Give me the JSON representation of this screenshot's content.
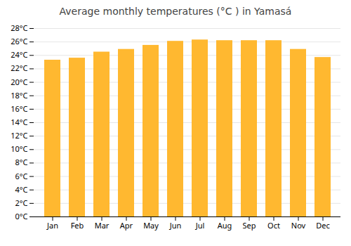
{
  "chart_data": {
    "type": "bar",
    "title": "Average monthly temperatures (°C ) in Yamasá",
    "categories": [
      "Jan",
      "Feb",
      "Mar",
      "Apr",
      "May",
      "Jun",
      "Jul",
      "Aug",
      "Sep",
      "Oct",
      "Nov",
      "Dec"
    ],
    "values": [
      23.3,
      23.6,
      24.5,
      24.9,
      25.5,
      26.1,
      26.3,
      26.2,
      26.2,
      26.2,
      24.9,
      23.7
    ],
    "color": "#FFB830",
    "ylim": [
      0,
      28
    ],
    "yticks": [
      {
        "value": 0,
        "label": "0°C"
      },
      {
        "value": 2,
        "label": "2°C"
      },
      {
        "value": 4,
        "label": "4°C"
      },
      {
        "value": 6,
        "label": "6°C"
      },
      {
        "value": 8,
        "label": "8°C"
      },
      {
        "value": 10,
        "label": "10°C"
      },
      {
        "value": 12,
        "label": "12°C"
      },
      {
        "value": 14,
        "label": "14°C"
      },
      {
        "value": 16,
        "label": "16°C"
      },
      {
        "value": 18,
        "label": "18°C"
      },
      {
        "value": 20,
        "label": "20°C"
      },
      {
        "value": 22,
        "label": "22°C"
      },
      {
        "value": 24,
        "label": "24°C"
      },
      {
        "value": 26,
        "label": "26°C"
      },
      {
        "value": 28,
        "label": "28°C"
      }
    ],
    "grid": true
  }
}
